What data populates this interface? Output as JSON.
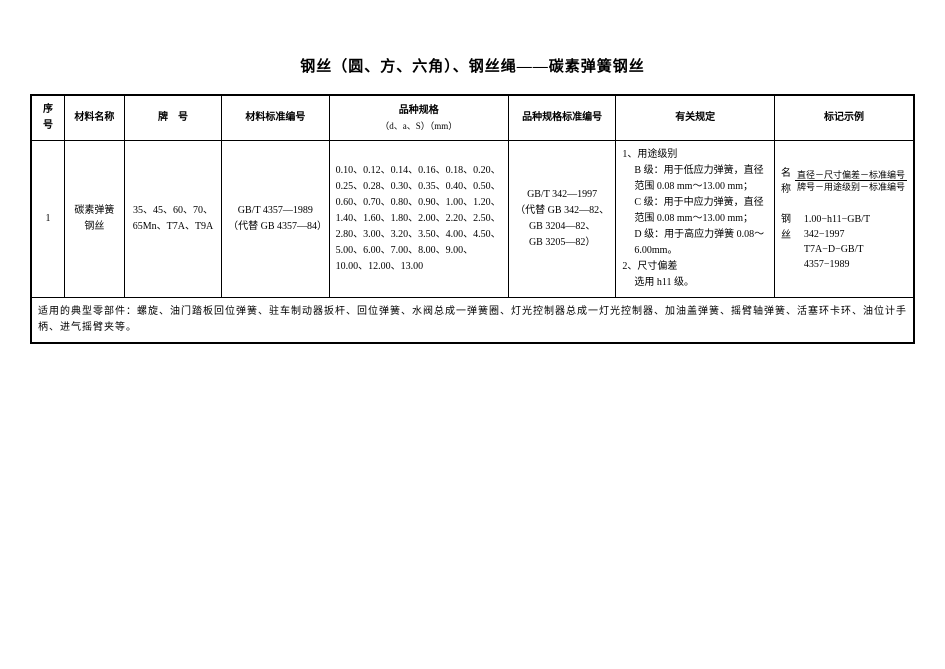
{
  "title": "钢丝（圆、方、六角）、钢丝绳——碳素弹簧钢丝",
  "columns": {
    "seq": "序号",
    "name": "材料名称",
    "grade": "牌　号",
    "std": "材料标准编号",
    "spec": "品种规格",
    "spec_sub": "（d、a、S）（mm）",
    "specstd": "品种规格标准编号",
    "rules": "有关规定",
    "mark": "标记示例"
  },
  "row": {
    "seq": "1",
    "name": "碳素弹簧钢丝",
    "grade": "35、45、60、70、65Mn、T7A、T9A",
    "std_line1": "GB/T 4357—1989",
    "std_line2": "（代替 GB 4357—84）",
    "spec_text": "0.10、0.12、0.14、0.16、0.18、0.20、0.25、0.28、0.30、0.35、0.40、0.50、0.60、0.70、0.80、0.90、1.00、1.20、1.40、1.60、1.80、2.00、2.20、2.50、2.80、3.00、3.20、3.50、4.00、4.50、5.00、6.00、7.00、8.00、9.00、10.00、12.00、13.00",
    "specstd_line1": "GB/T 342—1997",
    "specstd_line2": "（代替 GB 342—82、",
    "specstd_line3": "GB 3204—82、",
    "specstd_line4": "GB 3205—82）",
    "rules_l1": "1、用途级别",
    "rules_l2": "B 级：用于低应力弹簧，直径范围 0.08 mm～13.00 mm；",
    "rules_l3": "C 级：用于中应力弹簧，直径范围 0.08 mm～13.00 mm；",
    "rules_l4": "D 级：用于高应力弹簧 0.08～6.00mm。",
    "rules_l5": "2、尺寸偏差",
    "rules_l6": "选用 h11 级。",
    "mark_name_label": "名称",
    "mark_frac_num": "直径－尺寸偏差－标准编号",
    "mark_frac_den": "牌号－用途级别－标准编号",
    "mark_ex_label": "钢丝",
    "mark_ex_line1": "1.00−h11−GB/T 342−1997",
    "mark_ex_line2": "T7A−D−GB/T 4357−1989"
  },
  "note": "适用的典型零部件：螺旋、油门踏板回位弹簧、驻车制动器扳杆、回位弹簧、水阀总成一弹簧圈、灯光控制器总成一灯光控制器、加油盖弹簧、摇臂轴弹簧、活塞环卡环、油位计手柄、进气摇臂夹等。"
}
